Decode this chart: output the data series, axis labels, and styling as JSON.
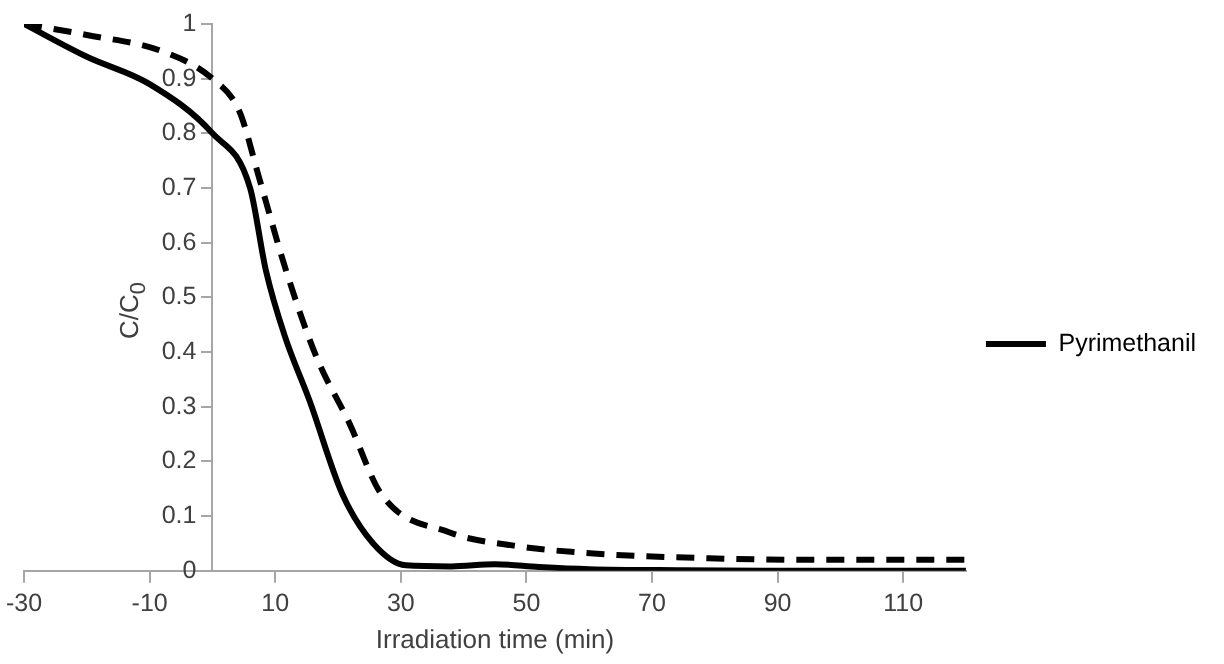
{
  "chart_data": {
    "type": "line",
    "xlabel": "Irradiation time (min)",
    "ylabel": "C/C$_{0}$",
    "xlim": [
      -30,
      120
    ],
    "xticks": [
      -30,
      -10,
      10,
      30,
      50,
      70,
      90,
      110
    ],
    "ylim": [
      0,
      1
    ],
    "yticks": [
      0,
      0.1,
      0.2,
      0.3,
      0.4,
      0.5,
      0.6,
      0.7,
      0.8,
      0.9,
      1
    ],
    "grid": false,
    "legend": "right",
    "marker": "none",
    "series": [
      {
        "name": "Pyrimethanil",
        "color": "#000000",
        "line_style": "solid",
        "x": [
          -30,
          -20,
          -10,
          0,
          6,
          8.5,
          11.5,
          15.5,
          20.7,
          25.6,
          30.8,
          38,
          45,
          52,
          60,
          75,
          90,
          120
        ],
        "values": [
          1,
          0.94,
          0.89,
          0.8,
          0.7,
          0.55,
          0.43,
          0.31,
          0.14,
          0.05,
          0.01,
          0.008,
          0.012,
          0.007,
          0.003,
          0.001,
          0,
          0
        ]
      },
      {
        "color": "#000000",
        "line_style": "dashed",
        "x": [
          -30,
          -20,
          -8,
          0,
          4.3,
          7.4,
          11.7,
          16.6,
          21.8,
          26.9,
          37.8,
          48,
          63,
          79,
          95,
          120
        ],
        "values": [
          1,
          0.98,
          0.95,
          0.9,
          0.84,
          0.72,
          0.55,
          0.39,
          0.27,
          0.14,
          0.07,
          0.046,
          0.03,
          0.023,
          0.02,
          0.02
        ]
      }
    ]
  }
}
